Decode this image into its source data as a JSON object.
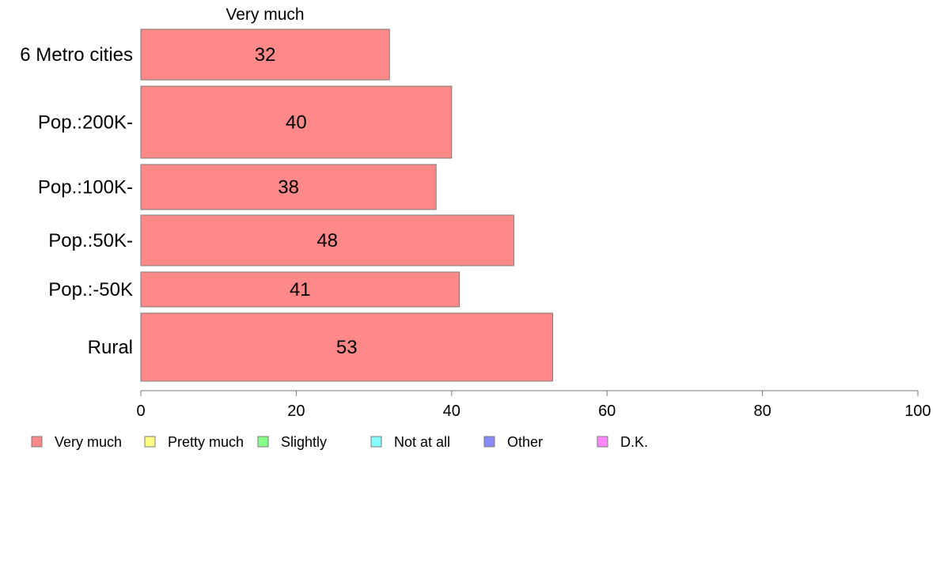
{
  "chart_data": {
    "type": "bar",
    "orientation": "horizontal",
    "header": "Very much",
    "categories": [
      "6 Metro cities",
      "Pop.:200K-",
      "Pop.:100K-",
      "Pop.:50K-",
      "Pop.:-50K",
      "Rural"
    ],
    "values": [
      32,
      40,
      38,
      48,
      41,
      53
    ],
    "series": [
      {
        "name": "Very much",
        "values": [
          32,
          40,
          38,
          48,
          41,
          53
        ]
      }
    ],
    "xlim": [
      0,
      100
    ],
    "xticks": [
      "0",
      "20",
      "40",
      "60",
      "80",
      "100"
    ],
    "grid": false,
    "legend_position": "bottom",
    "legend": [
      {
        "label": "Very much",
        "color": "#ff8888"
      },
      {
        "label": "Pretty much",
        "color": "#ffff88"
      },
      {
        "label": "Slightly",
        "color": "#88ff88"
      },
      {
        "label": "Not at all",
        "color": "#88ffff"
      },
      {
        "label": "Other",
        "color": "#8888ff"
      },
      {
        "label": "D.K.",
        "color": "#ff88ff"
      }
    ],
    "bar_color": "#ff8888"
  }
}
